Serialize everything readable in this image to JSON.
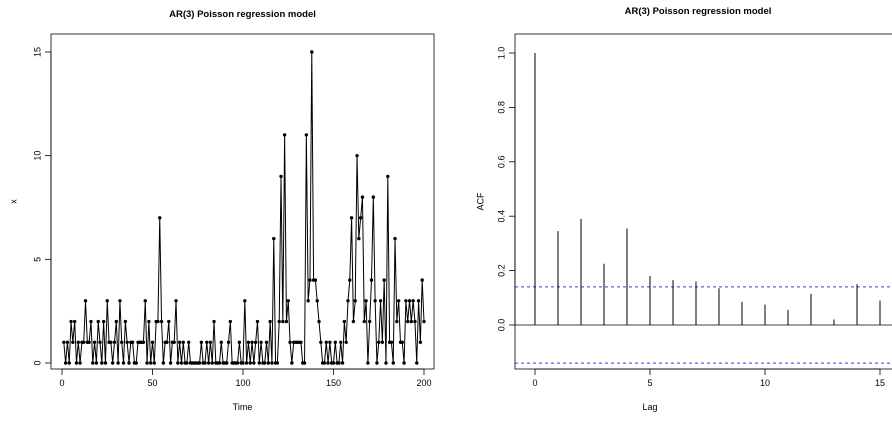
{
  "chart_data": [
    {
      "type": "line",
      "title": "AR(3) Poisson regression model",
      "xlabel": "Time",
      "ylabel": "x",
      "xlim": [
        0,
        200
      ],
      "ylim": [
        0,
        15
      ],
      "xticks": [
        0,
        50,
        100,
        150,
        200
      ],
      "yticks": [
        0,
        5,
        10,
        15
      ],
      "markers": true,
      "color": "#000000",
      "x": [
        1,
        2,
        3,
        4,
        5,
        6,
        7,
        8,
        9,
        10,
        11,
        12,
        13,
        14,
        15,
        16,
        17,
        18,
        19,
        20,
        21,
        22,
        23,
        24,
        25,
        26,
        27,
        28,
        29,
        30,
        31,
        32,
        33,
        34,
        35,
        36,
        37,
        38,
        39,
        40,
        41,
        42,
        43,
        44,
        45,
        46,
        47,
        48,
        49,
        50,
        51,
        52,
        53,
        54,
        55,
        56,
        57,
        58,
        59,
        60,
        61,
        62,
        63,
        64,
        65,
        66,
        67,
        68,
        69,
        70,
        71,
        72,
        73,
        74,
        75,
        76,
        77,
        78,
        79,
        80,
        81,
        82,
        83,
        84,
        85,
        86,
        87,
        88,
        89,
        90,
        91,
        92,
        93,
        94,
        95,
        96,
        97,
        98,
        99,
        100,
        101,
        102,
        103,
        104,
        105,
        106,
        107,
        108,
        109,
        110,
        111,
        112,
        113,
        114,
        115,
        116,
        117,
        118,
        119,
        120,
        121,
        122,
        123,
        124,
        125,
        126,
        127,
        128,
        129,
        130,
        131,
        132,
        133,
        134,
        135,
        136,
        137,
        138,
        139,
        140,
        141,
        142,
        143,
        144,
        145,
        146,
        147,
        148,
        149,
        150,
        151,
        152,
        153,
        154,
        155,
        156,
        157,
        158,
        159,
        160,
        161,
        162,
        163,
        164,
        165,
        166,
        167,
        168,
        169,
        170,
        171,
        172,
        173,
        174,
        175,
        176,
        177,
        178,
        179,
        180,
        181,
        182,
        183,
        184,
        185,
        186,
        187,
        188,
        189,
        190,
        191,
        192,
        193,
        194,
        195,
        196,
        197,
        198,
        199,
        200
      ],
      "values": [
        1,
        0,
        1,
        0,
        2,
        1,
        2,
        0,
        1,
        0,
        1,
        1,
        3,
        1,
        1,
        2,
        0,
        1,
        0,
        2,
        1,
        0,
        2,
        0,
        3,
        1,
        1,
        0,
        1,
        2,
        0,
        3,
        1,
        0,
        2,
        1,
        0,
        1,
        1,
        0,
        0,
        1,
        1,
        1,
        1,
        3,
        0,
        2,
        0,
        1,
        0,
        2,
        2,
        7,
        2,
        0,
        1,
        1,
        2,
        0,
        1,
        1,
        3,
        0,
        1,
        0,
        1,
        0,
        0,
        1,
        0,
        0,
        0,
        0,
        0,
        0,
        1,
        0,
        0,
        1,
        0,
        1,
        0,
        2,
        0,
        0,
        0,
        1,
        0,
        0,
        0,
        1,
        2,
        0,
        0,
        0,
        0,
        1,
        0,
        0,
        3,
        0,
        1,
        0,
        1,
        0,
        1,
        2,
        0,
        1,
        0,
        0,
        1,
        0,
        2,
        0,
        6,
        0,
        0,
        2,
        9,
        2,
        11,
        2,
        3,
        1,
        0,
        1,
        1,
        1,
        1,
        1,
        0,
        0,
        11,
        3,
        4,
        15,
        4,
        4,
        3,
        2,
        1,
        0,
        0,
        1,
        0,
        1,
        0,
        0,
        1,
        0,
        0,
        1,
        0,
        2,
        1,
        3,
        4,
        7,
        2,
        3,
        10,
        6,
        7,
        8,
        2,
        3,
        0,
        2,
        4,
        8,
        3,
        0,
        1,
        3,
        1,
        4,
        0,
        9,
        1,
        1,
        0,
        6,
        2,
        3,
        1,
        1,
        0,
        3,
        2,
        3,
        2,
        3,
        2,
        0,
        3,
        1,
        4,
        2
      ]
    },
    {
      "type": "bar",
      "title": "AR(3) Poisson regression model",
      "xlabel": "Lag",
      "ylabel": "ACF",
      "xlim": [
        -1.1,
        15.8
      ],
      "ylim": [
        -0.18,
        1.04
      ],
      "xticks": [
        0,
        5,
        10,
        15
      ],
      "yticks": [
        "0.0",
        "0.2",
        "0.4",
        "0.6",
        "0.8",
        "1.0"
      ],
      "lags": [
        0,
        1,
        2,
        3,
        4,
        5,
        6,
        7,
        8,
        9,
        10,
        11,
        12,
        13,
        14,
        15
      ],
      "values": [
        1.0,
        0.345,
        0.39,
        0.225,
        0.355,
        0.18,
        0.165,
        0.16,
        0.135,
        0.085,
        0.075,
        0.055,
        0.115,
        0.02,
        0.15,
        0.09
      ],
      "confidence_bound": 0.14,
      "bound_color": "#2e3fd1",
      "color": "#000000"
    }
  ]
}
